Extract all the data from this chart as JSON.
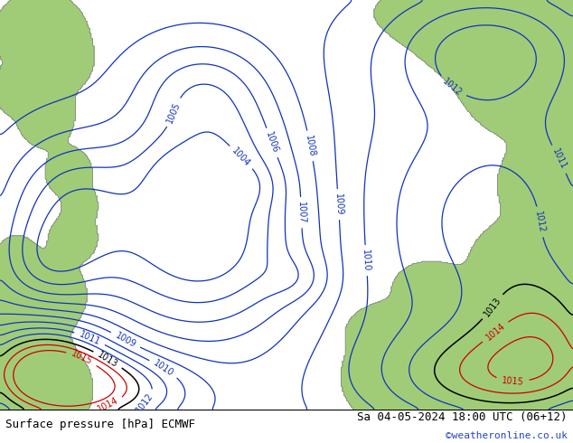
{
  "title_left": "Surface pressure [hPa] ECMWF",
  "title_right": "Sa 04-05-2024 18:00 UTC (06+12)",
  "credit": "©weatheronline.co.uk",
  "fig_width": 6.34,
  "fig_height": 4.9,
  "dpi": 100,
  "bg_color": "#d8d8d8",
  "sea_color": "#d8d8d8",
  "green_color": "#a0cc78",
  "contour_blue": "#1133bb",
  "contour_black": "#000000",
  "contour_red": "#cc0000",
  "contour_gray": "#888888",
  "label_fontsize": 7,
  "footer_fontsize": 9,
  "credit_fontsize": 8,
  "credit_color": "#2244cc",
  "footer_bg": "#ffffff"
}
